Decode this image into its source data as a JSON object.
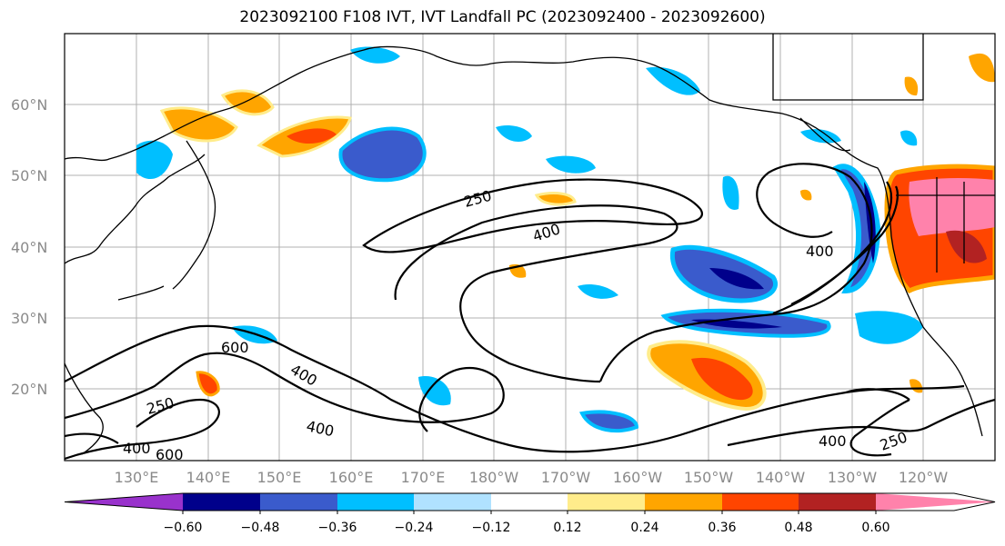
{
  "title": "2023092100 F108 IVT, IVT Landfall PC (2023092400 - 2023092600)",
  "map": {
    "lat_ticks": [
      "60°N",
      "50°N",
      "40°N",
      "30°N",
      "20°N"
    ],
    "lon_ticks": [
      "130°E",
      "140°E",
      "150°E",
      "160°E",
      "170°E",
      "180°W",
      "170°W",
      "160°W",
      "150°W",
      "140°W",
      "130°W",
      "120°W"
    ],
    "contour_labels": [
      "250",
      "400",
      "400",
      "600",
      "400",
      "250",
      "400",
      "600",
      "400",
      "400",
      "250"
    ]
  },
  "colorbar": {
    "tick_labels": [
      "−0.60",
      "−0.48",
      "−0.36",
      "−0.24",
      "−0.12",
      "0.12",
      "0.24",
      "0.36",
      "0.48",
      "0.60"
    ],
    "colors": [
      "#9932cc",
      "#00008b",
      "#3a5bcc",
      "#00bfff",
      "#b0e2ff",
      "#ffffff",
      "#ffec8b",
      "#ffa500",
      "#ff4500",
      "#b22222",
      "#ff82ab"
    ]
  }
}
